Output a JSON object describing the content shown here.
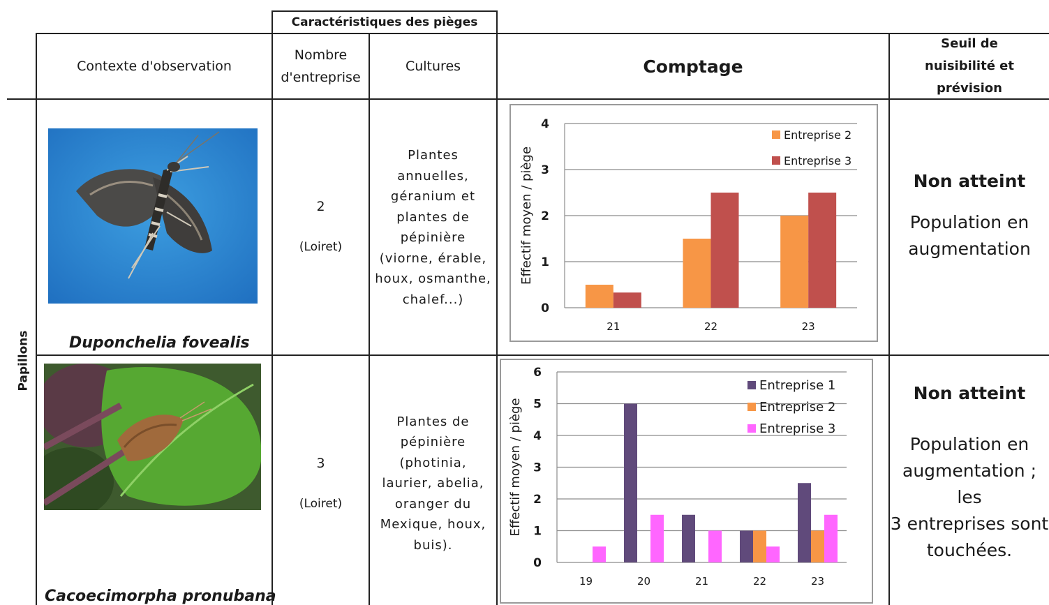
{
  "header": {
    "group_title": "Caractéristiques des pièges",
    "col_contexte": "Contexte d'observation",
    "col_nombre_line1": "Nombre",
    "col_nombre_line2": "d'entreprise",
    "col_cultures": "Cultures",
    "col_comptage": "Comptage",
    "col_seuil_line1": "Seuil de",
    "col_seuil_line2": "nuisibilité et prévision"
  },
  "group_label": "Papillons",
  "rows": [
    {
      "species": "Duponchelia fovealis",
      "nombre": "2",
      "region": "(Loiret)",
      "cultures": [
        "Plantes",
        "annuelles,",
        "géranium et",
        "plantes de",
        "pépinière",
        "(viorne, érable,",
        "houx, osmanthe,",
        "chalef...)"
      ],
      "seuil_title": "Non atteint",
      "seuil_text": [
        "Population en",
        "augmentation"
      ]
    },
    {
      "species": "Cacoecimorpha pronubana",
      "nombre": "3",
      "region": "(Loiret)",
      "cultures": [
        "Plantes de",
        "pépinière",
        "(photinia,",
        "laurier, abelia,",
        "oranger du",
        "Mexique, houx,",
        "buis)."
      ],
      "seuil_title": "Non atteint",
      "seuil_text": [
        "Population en",
        "augmentation ; les",
        "3 entreprises sont",
        "touchées."
      ]
    }
  ],
  "chart_data": [
    {
      "type": "bar",
      "ylabel": "Effectif moyen / piège",
      "xlabel": "",
      "categories": [
        "21",
        "22",
        "23"
      ],
      "ylim": [
        0,
        4
      ],
      "yticks": [
        0,
        1,
        2,
        3,
        4
      ],
      "grid": true,
      "legend": "top-right",
      "series": [
        {
          "name": "Entreprise 2",
          "color": "#f79646",
          "values": [
            0.5,
            1.5,
            2.0
          ]
        },
        {
          "name": "Entreprise 3",
          "color": "#c0504d",
          "values": [
            0.33,
            2.5,
            2.5
          ]
        }
      ]
    },
    {
      "type": "bar",
      "ylabel": "Effectif moyen / piège",
      "xlabel": "",
      "categories": [
        "19",
        "20",
        "21",
        "22",
        "23"
      ],
      "ylim": [
        0,
        6
      ],
      "yticks": [
        0,
        1,
        2,
        3,
        4,
        5,
        6
      ],
      "grid": true,
      "legend": "top-right",
      "series": [
        {
          "name": "Entreprise 1",
          "color": "#604a7b",
          "values": [
            0,
            5,
            1.5,
            1,
            2.5
          ]
        },
        {
          "name": "Entreprise 2",
          "color": "#f79646",
          "values": [
            0,
            0,
            0,
            1,
            1
          ]
        },
        {
          "name": "Entreprise 3",
          "color": "#ff66ff",
          "values": [
            0.5,
            1.5,
            1,
            0.5,
            1.5
          ]
        }
      ]
    }
  ]
}
